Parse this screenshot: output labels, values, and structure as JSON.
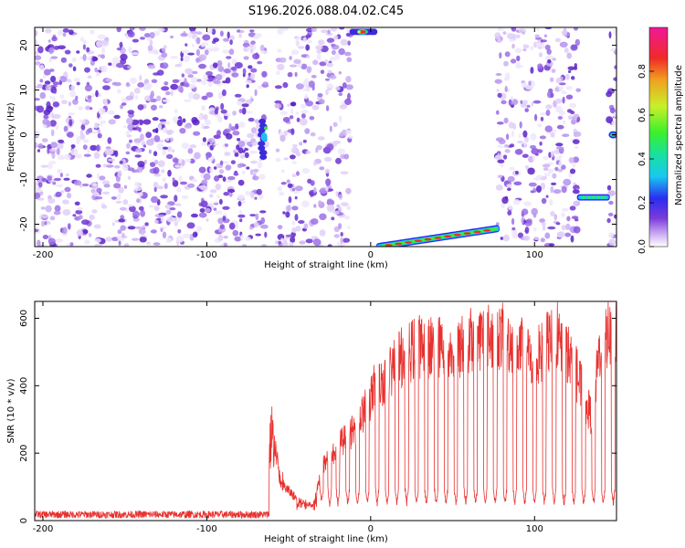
{
  "title": "S196.2026.088.04.02.C45",
  "chart_data": [
    {
      "type": "heatmap",
      "xlabel": "Height of straight line (km)",
      "ylabel": "Frequency (Hz)",
      "xlim": [
        -205,
        150
      ],
      "ylim": [
        -25,
        24
      ],
      "x_ticks": [
        -200,
        -100,
        0,
        100
      ],
      "y_ticks": [
        -20,
        -10,
        0,
        10,
        20
      ],
      "colorbar": {
        "label": "Normalized spectral amplitude",
        "range": [
          0,
          1
        ],
        "ticks": [
          "0.0",
          "0.2",
          "0.4",
          "0.6",
          "0.8"
        ],
        "scheme": "rainbow (white-violet-blue-cyan-green-yellow-red-magenta)"
      },
      "noise_region_x": [
        -205,
        -12
      ],
      "blank_gaps_x": [
        [
          -64,
          -57
        ],
        [
          -12,
          77
        ],
        [
          127,
          145
        ]
      ],
      "features": [
        {
          "name": "compact blob",
          "x": [
            -67,
            -62
          ],
          "freq_hz": 0
        },
        {
          "name": "top-edge signal",
          "x": [
            -10,
            2
          ],
          "freq_hz": 23
        },
        {
          "name": "rising tone",
          "x": [
            5,
            77
          ],
          "freq_hz": [
            -25,
            -21
          ]
        },
        {
          "name": "flat tone",
          "x": [
            128,
            145
          ],
          "freq_hz": -14
        },
        {
          "name": "right-edge blob",
          "x": [
            146,
            150
          ],
          "freq_hz": 0
        }
      ]
    },
    {
      "type": "line",
      "xlabel": "Height of straight line (km)",
      "ylabel": "SNR (10 * v/v)",
      "xlim": [
        -205,
        150
      ],
      "ylim": [
        0,
        650
      ],
      "x_ticks": [
        -200,
        -100,
        0,
        100
      ],
      "y_ticks": [
        0,
        200,
        400,
        600
      ],
      "series_color": "#e8312f",
      "series_envelope": {
        "x": [
          -205,
          -62,
          -60,
          -55,
          -45,
          -35,
          -30,
          -25,
          -20,
          -10,
          0,
          10,
          20,
          30,
          40,
          50,
          60,
          70,
          80,
          90,
          100,
          110,
          120,
          125,
          130,
          135,
          140,
          145,
          150
        ],
        "snr": [
          20,
          20,
          300,
          120,
          70,
          50,
          170,
          200,
          240,
          290,
          390,
          470,
          530,
          560,
          560,
          530,
          580,
          590,
          590,
          560,
          510,
          580,
          540,
          480,
          400,
          330,
          560,
          600,
          590
        ]
      },
      "dips_x": [
        -30,
        -25,
        -20,
        -14,
        -8,
        -2,
        4,
        10,
        16,
        22,
        28,
        34,
        40,
        46,
        52,
        58,
        64,
        70,
        76,
        82,
        88,
        94,
        100,
        106,
        112,
        118,
        124,
        130,
        136,
        142,
        148
      ],
      "dip_floor": 40
    }
  ]
}
